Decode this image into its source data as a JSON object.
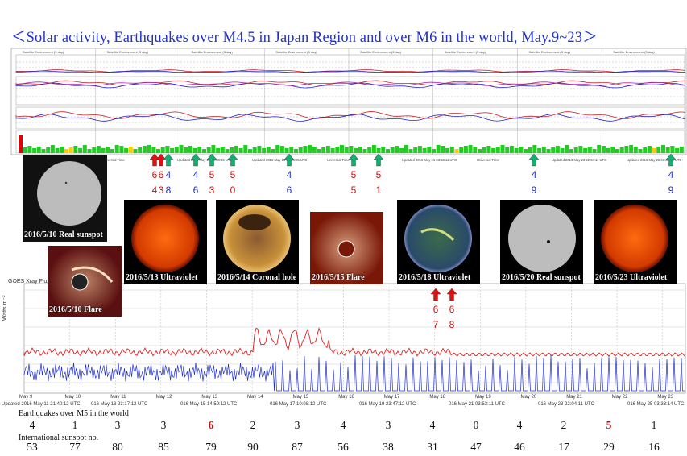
{
  "title": "＜Solar activity, Earthquakes over M4.5 in Japan Region and over M6 in the world, May.9~23＞",
  "top_chart": {
    "panel_header": "Satellite Environment (3 day)",
    "footer_labels": [
      "Updated 2016 May 13 23:44:05 UTC",
      "Universal Time",
      "Updated 2016 May 17 10:08:06 UTC",
      "Updated 2016 May 19 23:44:05 UTC",
      "Universal Time",
      "Updated 2016 May 21 03:53:11 UTC",
      "Universal Time",
      "Updated 2016 May 23 22:04:11 UTC",
      "Updated 2016 May 25 03:33:14 UTC"
    ],
    "kp_bar_colors": [
      "#e00000",
      "#ffcc00",
      "#22cc22"
    ]
  },
  "earthquake_markers": [
    {
      "pair": [
        "6",
        "4"
      ],
      "colors": [
        "red",
        "red"
      ]
    },
    {
      "pair": [
        "6",
        "3"
      ],
      "colors": [
        "red",
        "red"
      ]
    },
    {
      "pair": [
        "4",
        "8"
      ],
      "colors": [
        "blue",
        "blue"
      ]
    },
    {
      "pair": [
        "4",
        "6"
      ],
      "colors": [
        "blue",
        "blue"
      ]
    },
    {
      "pair": [
        "5",
        "3"
      ],
      "colors": [
        "red",
        "red"
      ]
    },
    {
      "pair": [
        "5",
        "0"
      ],
      "colors": [
        "red",
        "red"
      ]
    },
    {
      "pair": [
        "4",
        "6"
      ],
      "colors": [
        "blue",
        "blue"
      ]
    },
    {
      "pair": [
        "5",
        "5"
      ],
      "colors": [
        "red",
        "red"
      ]
    },
    {
      "pair": [
        "5",
        "1"
      ],
      "colors": [
        "red",
        "red"
      ]
    },
    {
      "pair": [
        "4",
        "9"
      ],
      "colors": [
        "blue",
        "blue"
      ]
    },
    {
      "pair": [
        "4",
        "9"
      ],
      "colors": [
        "blue",
        "blue"
      ]
    },
    {
      "pair": [
        "6",
        "7"
      ],
      "colors": [
        "red",
        "red"
      ]
    },
    {
      "pair": [
        "6",
        "8"
      ],
      "colors": [
        "red",
        "red"
      ]
    }
  ],
  "images": [
    {
      "caption": "2016/5/10 Real sunspot"
    },
    {
      "caption": "2016/5/10 Flare"
    },
    {
      "caption": "2016/5/13 Ultraviolet"
    },
    {
      "caption": "2016/5/14  Coronal hole"
    },
    {
      "caption": "2016/5/15 Flare"
    },
    {
      "caption": "2016/5/18 Ultraviolet"
    },
    {
      "caption": "2016/5/20 Real sunspot"
    },
    {
      "caption": "2016/5/23 Ultraviolet"
    }
  ],
  "xray_chart": {
    "header": "GOES Xray Flux",
    "ylabel": "Watts m⁻²",
    "x_ticks": [
      "May 9",
      "May 10",
      "May 11",
      "May 12",
      "May 13",
      "May 14",
      "May 15",
      "May 16",
      "May 17",
      "May 18",
      "May 19",
      "May 20",
      "May 21",
      "May 22",
      "May 23"
    ],
    "axis_label": "Universal Time",
    "updated": [
      "Updated 2016 May 11 21:40:12 UTC",
      "016 May 13 23:17:12 UTC",
      "016 May 15 14:59:12 UTC",
      "016 May 17 10:08:12 UTC",
      "016 May 19 23:47:12 UTC",
      "016 May 21 03:53:11 UTC",
      "016 May 23 22:04:11 UTC",
      "016 May 25 03:33:14 UTC"
    ]
  },
  "table": {
    "row1_label": "Earthquakes over M5 in the world",
    "row1": [
      "4",
      "1",
      "3",
      "3",
      "6",
      "2",
      "3",
      "4",
      "3",
      "4",
      "0",
      "4",
      "2",
      "5",
      "1"
    ],
    "row1_red": [
      false,
      false,
      false,
      false,
      true,
      false,
      false,
      false,
      false,
      false,
      false,
      false,
      false,
      true,
      false
    ],
    "row2_label": "International sunspot no.",
    "row2": [
      "53",
      "77",
      "80",
      "85",
      "79",
      "90",
      "87",
      "56",
      "38",
      "31",
      "47",
      "46",
      "17",
      "29",
      "16"
    ]
  }
}
